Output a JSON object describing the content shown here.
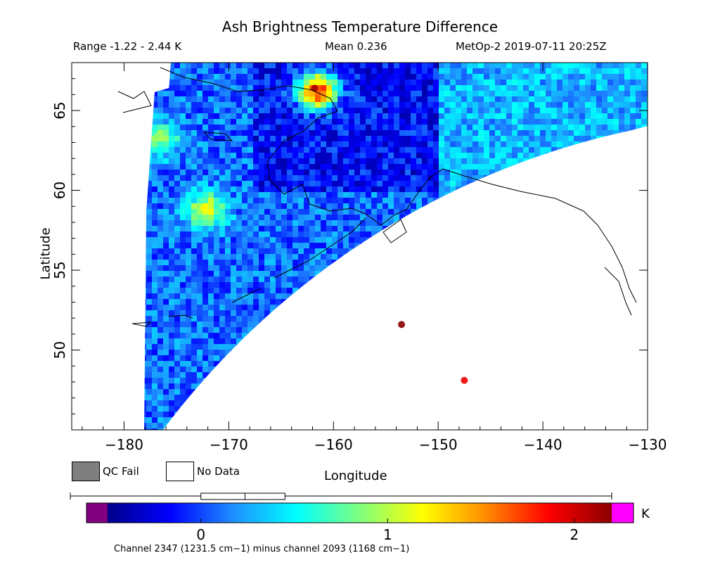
{
  "chart_data": {
    "type": "heatmap",
    "title": "Ash Brightness Temperature Difference",
    "range_text": "Range -1.22 - 2.44 K",
    "mean_text": "Mean 0.236",
    "satellite_text": "MetOp-2 2019-07-11 20:25Z",
    "xlabel": "Longitude",
    "ylabel": "Latitude",
    "xlim": [
      -185,
      -130
    ],
    "ylim": [
      45,
      68
    ],
    "x_ticks": [
      -180,
      -170,
      -160,
      -150,
      -140,
      -130
    ],
    "y_ticks": [
      50,
      55,
      60,
      65
    ],
    "x_tick_labels": [
      "−180",
      "−170",
      "−160",
      "−150",
      "−140",
      "−130"
    ],
    "y_tick_labels": [
      "50",
      "55",
      "60",
      "65"
    ],
    "background_value_K": 0.1,
    "hotspots": [
      {
        "lon": -153.5,
        "lat": 51.6,
        "value_K": 2.3
      },
      {
        "lon": -147.5,
        "lat": 48.1,
        "value_K": 1.9
      },
      {
        "lon": -161.8,
        "lat": 66.4,
        "value_K": 2.1
      },
      {
        "lon": -172.4,
        "lat": 58.9,
        "value_K": 1.2
      },
      {
        "lon": -176.8,
        "lat": 63.4,
        "value_K": 0.9
      }
    ],
    "colorbar": {
      "vmin": -0.5,
      "vmax": 2.2,
      "ticks": [
        0,
        1,
        2
      ],
      "tick_labels": [
        "0",
        "1",
        "2"
      ],
      "unit": "K",
      "underflow_color": "#800080",
      "overflow_color": "#ff00ff",
      "stops": [
        "#00008b",
        "#0000ff",
        "#1e90ff",
        "#00ffff",
        "#7fff7f",
        "#ffff00",
        "#ff8c00",
        "#ff0000",
        "#8b0000"
      ]
    },
    "legend": {
      "qc_fail_label": "QC Fail",
      "qc_fail_color": "#7f7f7f",
      "no_data_label": "No Data",
      "no_data_color": "#ffffff"
    },
    "range_indicator": {
      "low": -1.22,
      "mean": 0.236,
      "high": 2.44
    },
    "caption": "Channel 2347 (1231.5 cm−1) minus channel 2093 (1168 cm−1)"
  }
}
